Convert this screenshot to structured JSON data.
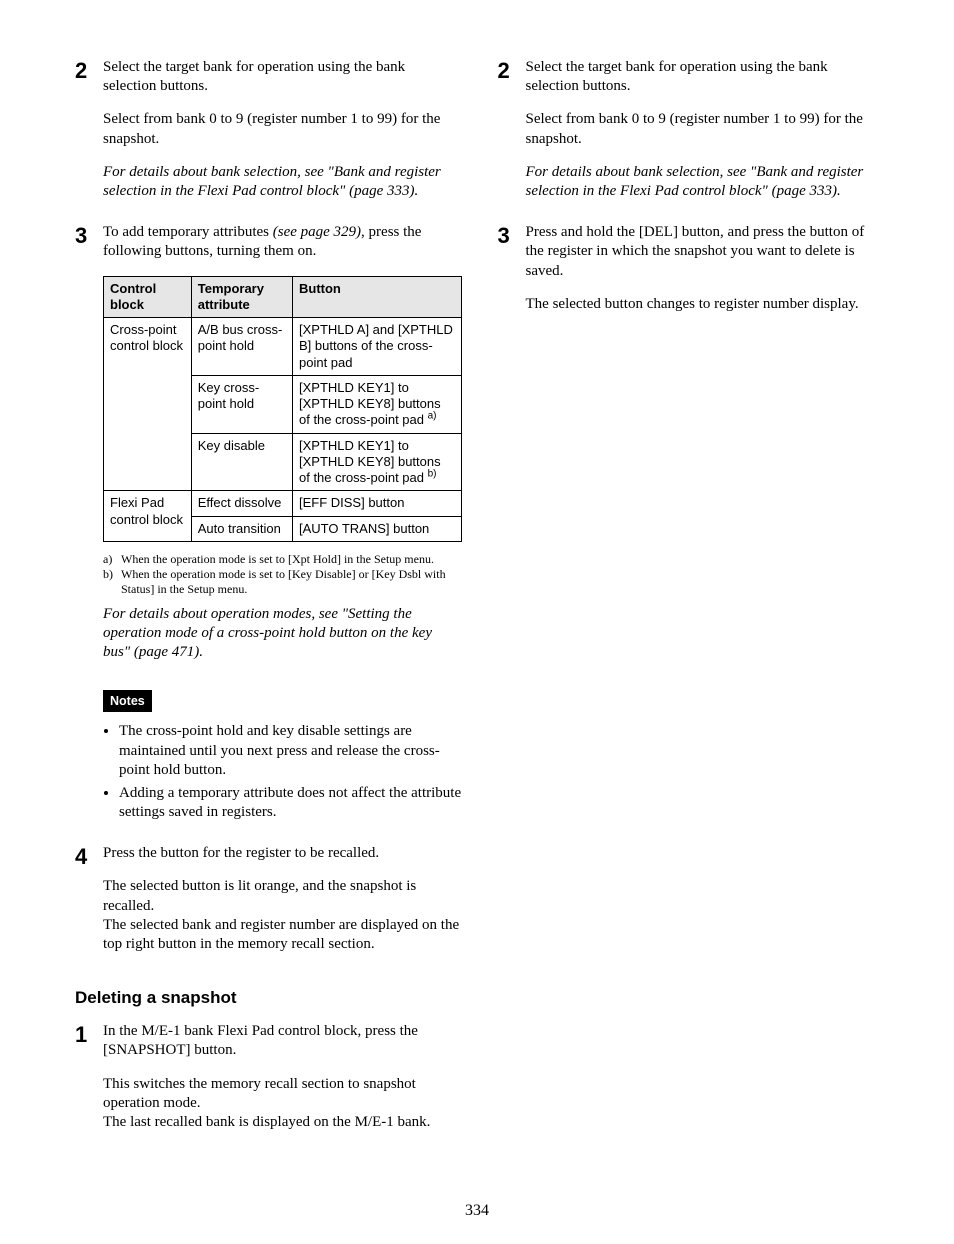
{
  "page_number": "334",
  "left": {
    "step2": {
      "num": "2",
      "p1": "Select the target bank for operation using the bank selection buttons.",
      "p2": "Select from bank 0 to 9 (register number 1 to 99) for the snapshot.",
      "p3": "For details about bank selection, see \"Bank and register selection in the Flexi Pad control block\" (page 333)."
    },
    "step3": {
      "num": "3",
      "p1a": "To add temporary attributes ",
      "p1b": "(see page 329)",
      "p1c": ", press the following buttons, turning them on."
    },
    "table": {
      "headers": [
        "Control block",
        "Temporary attribute",
        "Button"
      ],
      "r1c1": "Cross-point control block",
      "r1c2": "A/B bus cross-point hold",
      "r1c3": "[XPTHLD A] and [XPTHLD B] buttons of the cross-point pad",
      "r2c2": "Key cross-point hold",
      "r2c3": "[XPTHLD KEY1] to [XPTHLD KEY8] buttons of the cross-point pad ",
      "r2c3_sup": "a)",
      "r3c2": "Key disable",
      "r3c3": "[XPTHLD KEY1] to [XPTHLD KEY8] buttons of the cross-point pad ",
      "r3c3_sup": "b)",
      "r4c1": "Flexi Pad control block",
      "r4c2": "Effect dissolve",
      "r4c3": "[EFF DISS] button",
      "r5c2": "Auto transition",
      "r5c3": "[AUTO TRANS] button"
    },
    "footnotes": {
      "a_label": "a)",
      "a_text": "When the operation mode is set to [Xpt Hold] in the Setup menu.",
      "b_label": "b)",
      "b_text": "When the operation mode is set to [Key Disable] or [Key Dsbl with Status] in the Setup menu."
    },
    "opmodes_note": "For details about operation modes, see \"Setting the operation mode of a cross-point hold button on the key bus\" (page 471).",
    "notes_label": "Notes",
    "notes": {
      "n1": "The cross-point hold and key disable settings are maintained until you next press and release the cross-point hold button.",
      "n2": "Adding a temporary attribute does not affect the attribute settings saved in registers."
    },
    "step4": {
      "num": "4",
      "p1": "Press the button for the register to be recalled.",
      "p2": "The selected button is lit orange, and the snapshot is recalled.",
      "p3": "The selected bank and register number are displayed on the top right button in the memory recall section."
    },
    "subhead": "Deleting a snapshot",
    "del_step1": {
      "num": "1",
      "p1": "In the M/E-1 bank Flexi Pad control block, press the [SNAPSHOT] button.",
      "p2": "This switches the memory recall section to snapshot operation mode.",
      "p3": "The last recalled bank is displayed on the M/E-1 bank."
    }
  },
  "right": {
    "step2": {
      "num": "2",
      "p1": "Select the target bank for operation using the bank selection buttons.",
      "p2": "Select from bank 0 to 9 (register number 1 to 99) for the snapshot.",
      "p3": "For details about bank selection, see \"Bank and register selection in the Flexi Pad control block\" (page 333)."
    },
    "step3": {
      "num": "3",
      "p1": "Press and hold the [DEL] button, and press the button of the register in which the snapshot you want to delete is saved.",
      "p2": "The selected button changes to register number display."
    }
  }
}
